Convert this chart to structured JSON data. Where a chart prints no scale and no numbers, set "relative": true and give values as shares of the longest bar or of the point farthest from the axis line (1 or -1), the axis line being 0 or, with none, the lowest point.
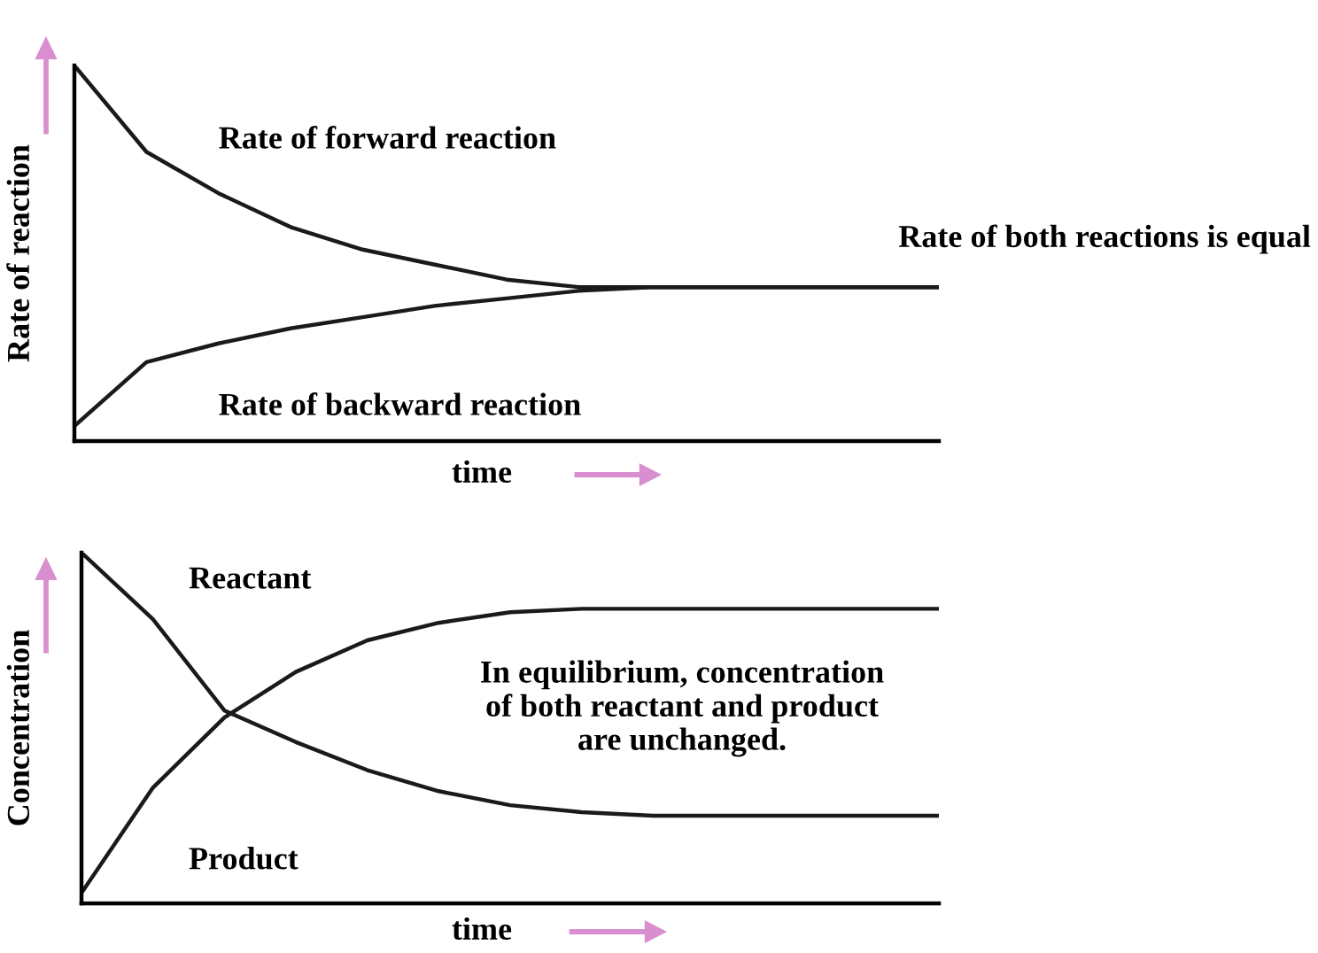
{
  "chart_data": [
    {
      "type": "line",
      "relative": true,
      "xlabel": "time",
      "ylabel": "Rate of reaction",
      "legend": false,
      "tick_labels": false,
      "categories": [
        null,
        null,
        null,
        null,
        null,
        null,
        null,
        null,
        null,
        null,
        null,
        null,
        null
      ],
      "series": [
        {
          "name": "Rate of forward reaction",
          "color": "#1a1a1a",
          "values": [
            1.0,
            0.77,
            0.66,
            0.57,
            0.51,
            0.47,
            0.43,
            0.41,
            0.41,
            0.41,
            0.41,
            0.41,
            0.41
          ]
        },
        {
          "name": "Rate of backward reaction",
          "color": "#1a1a1a",
          "values": [
            0.04,
            0.21,
            0.26,
            0.3,
            0.33,
            0.36,
            0.38,
            0.4,
            0.41,
            0.41,
            0.41,
            0.41,
            0.41
          ]
        }
      ],
      "annotations": [
        "Rate of both reactions is equal"
      ]
    },
    {
      "type": "line",
      "relative": true,
      "xlabel": "time",
      "ylabel": "Concentration",
      "legend": false,
      "tick_labels": false,
      "categories": [
        null,
        null,
        null,
        null,
        null,
        null,
        null,
        null,
        null,
        null,
        null,
        null,
        null
      ],
      "series": [
        {
          "name": "Reactant",
          "color": "#1a1a1a",
          "values": [
            1.0,
            0.81,
            0.55,
            0.46,
            0.38,
            0.32,
            0.28,
            0.26,
            0.25,
            0.25,
            0.25,
            0.25,
            0.25
          ]
        },
        {
          "name": "Product",
          "color": "#1a1a1a",
          "values": [
            0.03,
            0.33,
            0.53,
            0.66,
            0.75,
            0.8,
            0.83,
            0.84,
            0.84,
            0.84,
            0.84,
            0.84,
            0.84
          ]
        }
      ],
      "annotations": [
        "In equilibrium, concentration\nof both reactant and product\nare unchanged."
      ]
    }
  ]
}
